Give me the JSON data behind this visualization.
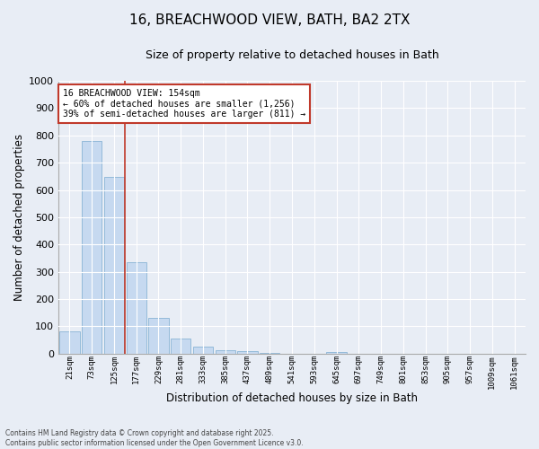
{
  "title1": "16, BREACHWOOD VIEW, BATH, BA2 2TX",
  "title2": "Size of property relative to detached houses in Bath",
  "xlabel": "Distribution of detached houses by size in Bath",
  "ylabel": "Number of detached properties",
  "bar_labels": [
    "21sqm",
    "73sqm",
    "125sqm",
    "177sqm",
    "229sqm",
    "281sqm",
    "333sqm",
    "385sqm",
    "437sqm",
    "489sqm",
    "541sqm",
    "593sqm",
    "645sqm",
    "697sqm",
    "749sqm",
    "801sqm",
    "853sqm",
    "905sqm",
    "957sqm",
    "1009sqm",
    "1061sqm"
  ],
  "bar_values": [
    83,
    780,
    648,
    335,
    130,
    57,
    25,
    14,
    8,
    4,
    1,
    1,
    7,
    0,
    0,
    0,
    0,
    0,
    0,
    0,
    0
  ],
  "bar_color": "#c6d9f0",
  "bar_edge_color": "#7aabcf",
  "vline_x": 2.5,
  "vline_color": "#c0392b",
  "annotation_text": "16 BREACHWOOD VIEW: 154sqm\n← 60% of detached houses are smaller (1,256)\n39% of semi-detached houses are larger (811) →",
  "annotation_box_color": "#ffffff",
  "annotation_box_edge": "#c0392b",
  "ylim": [
    0,
    1000
  ],
  "yticks": [
    0,
    100,
    200,
    300,
    400,
    500,
    600,
    700,
    800,
    900,
    1000
  ],
  "background_color": "#e8edf5",
  "grid_color": "#ffffff",
  "footer": "Contains HM Land Registry data © Crown copyright and database right 2025.\nContains public sector information licensed under the Open Government Licence v3.0."
}
